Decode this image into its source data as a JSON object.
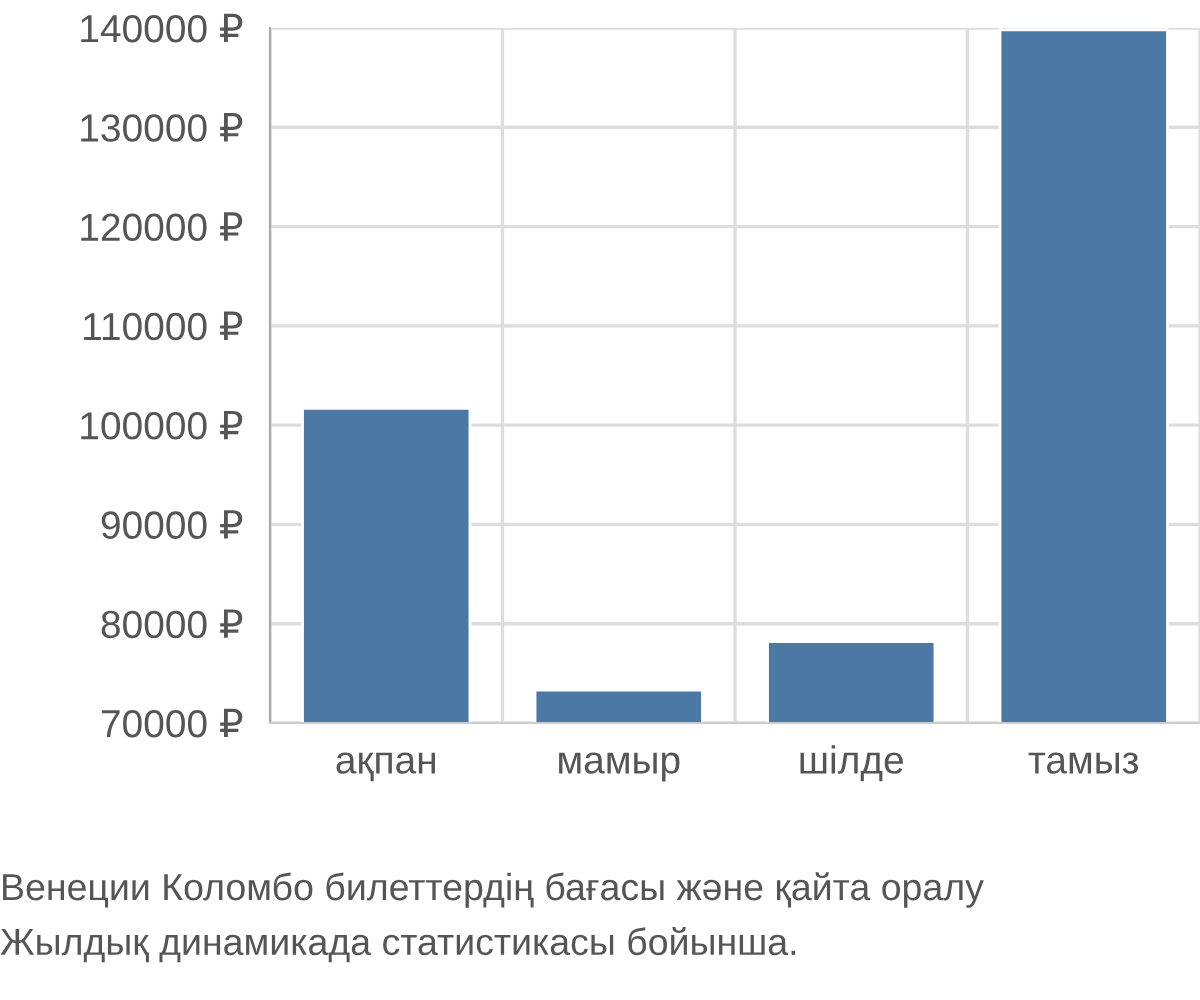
{
  "chart_data": {
    "type": "bar",
    "categories": [
      "ақпан",
      "мамыр",
      "шілде",
      "тамыз"
    ],
    "values": [
      101700,
      73300,
      78200,
      139800
    ],
    "color": "#4c78a6",
    "ylim": [
      70000,
      140000
    ],
    "yticks": [
      {
        "value": 70000,
        "label": "70000 ₽"
      },
      {
        "value": 80000,
        "label": "80000 ₽"
      },
      {
        "value": 90000,
        "label": "90000 ₽"
      },
      {
        "value": 100000,
        "label": "100000 ₽"
      },
      {
        "value": 110000,
        "label": "110000 ₽"
      },
      {
        "value": 120000,
        "label": "120000 ₽"
      },
      {
        "value": 130000,
        "label": "130000 ₽"
      },
      {
        "value": 140000,
        "label": "140000 ₽"
      }
    ],
    "grid": true,
    "annotations": [
      "Венеции Коломбо билеттердің бағасы және қайта оралу",
      "Жылдық динамикада статистикасы бойынша."
    ]
  }
}
